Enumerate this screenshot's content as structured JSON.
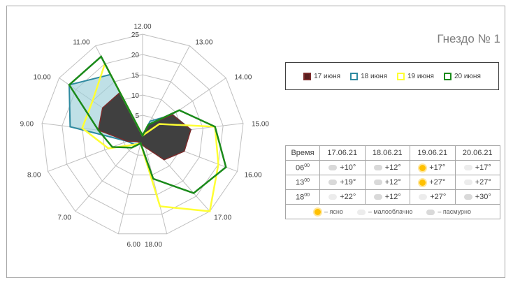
{
  "title": "Гнездо № 1",
  "colors": {
    "17 июня": "#7b2b2b",
    "18 июня": "#2e8aa0",
    "19 июня": "#ffff33",
    "20 июня": "#1a8a1a",
    "grid": "#bfbfbf",
    "fill": "#404040",
    "fill2": "#9dd0d8"
  },
  "chart_data": {
    "type": "radar",
    "title": "",
    "r_ticks": [
      "0",
      "5",
      "10",
      "15",
      "20",
      "25"
    ],
    "rlim": [
      0,
      25
    ],
    "categories": [
      "12.00",
      "13.00",
      "14.00",
      "15.00",
      "16.00",
      "17.00",
      "18.00",
      "6.00",
      "7.00",
      "8.00",
      "9.00",
      "10.00",
      "11.00"
    ],
    "series": [
      {
        "name": "17 июня",
        "values": [
          0,
          3,
          9,
          12,
          11,
          8,
          3,
          2,
          2,
          4,
          11,
          12,
          12
        ]
      },
      {
        "name": "18 июня",
        "values": [
          0,
          4,
          9,
          12,
          9,
          7,
          3,
          2,
          3,
          4,
          18,
          22,
          17
        ]
      },
      {
        "name": "19 июня",
        "values": [
          0,
          0,
          5,
          18,
          20,
          25,
          18,
          2,
          3,
          9,
          15,
          15,
          20
        ]
      },
      {
        "name": "20 июня",
        "values": [
          0,
          3,
          11,
          18,
          22,
          19,
          11,
          2,
          4,
          8,
          11,
          22,
          22
        ]
      }
    ],
    "legend_position": "right"
  },
  "weather": {
    "headers": [
      "Время",
      "17.06.21",
      "18.06.21",
      "19.06.21",
      "20.06.21"
    ],
    "rows": [
      {
        "time": "06",
        "time_sup": "00",
        "cells": [
          {
            "cond": "cloudy",
            "temp": "+10°"
          },
          {
            "cond": "cloudy",
            "temp": "+12°"
          },
          {
            "cond": "sunny",
            "temp": "+17°"
          },
          {
            "cond": "partly",
            "temp": "+17°"
          }
        ]
      },
      {
        "time": "13",
        "time_sup": "00",
        "cells": [
          {
            "cond": "cloudy",
            "temp": "+19°"
          },
          {
            "cond": "cloudy",
            "temp": "+12°"
          },
          {
            "cond": "sunny",
            "temp": "+27°"
          },
          {
            "cond": "partly",
            "temp": "+27°"
          }
        ]
      },
      {
        "time": "18",
        "time_sup": "00",
        "cells": [
          {
            "cond": "partly",
            "temp": "+22°"
          },
          {
            "cond": "cloudy",
            "temp": "+12°"
          },
          {
            "cond": "partly",
            "temp": "+27°"
          },
          {
            "cond": "cloudy",
            "temp": "+30°"
          }
        ]
      }
    ],
    "legend": [
      {
        "cond": "sunny",
        "label": "– ясно"
      },
      {
        "cond": "partly",
        "label": "– малооблачно"
      },
      {
        "cond": "cloudy",
        "label": "– пасмурно"
      }
    ]
  }
}
